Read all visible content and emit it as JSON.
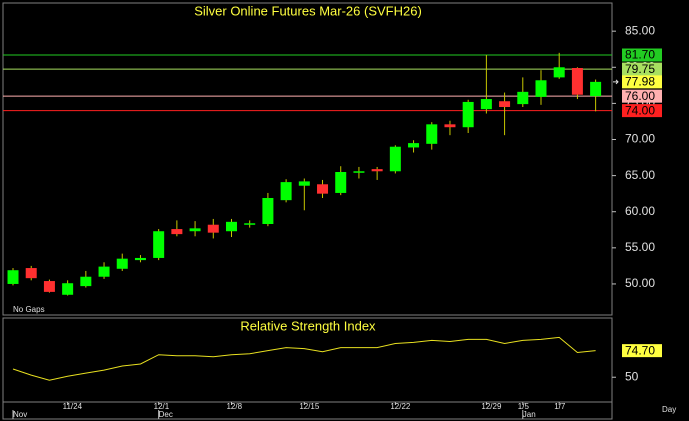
{
  "chart_data": [
    {
      "type": "candlestick",
      "title": "Silver Online Futures Mar-26 (SVFH26)",
      "annotation": "No Gaps",
      "up_color": "#00ff00",
      "down_color": "#ff3030",
      "wick_color": "#c8c800",
      "xlim": [
        -0.55,
        32.9
      ],
      "xticks": [
        {
          "value": 3,
          "label": "11/24"
        },
        {
          "value": 8,
          "label": "12/1"
        },
        {
          "value": 12,
          "label": "12/8"
        },
        {
          "value": 16,
          "label": "12/15"
        },
        {
          "value": 21,
          "label": "12/22"
        },
        {
          "value": 26,
          "label": "12/29"
        },
        {
          "value": 28,
          "label": "1/5"
        },
        {
          "value": 30,
          "label": "1/7"
        }
      ],
      "month_ticks": [
        {
          "value": 0,
          "label": "Nov"
        },
        {
          "value": 8,
          "label": "Dec"
        },
        {
          "value": 28,
          "label": "Jan"
        }
      ],
      "period_label": "Day",
      "ylim": [
        45.7,
        88.9
      ],
      "yticks": [
        {
          "value": 50,
          "label": "50.00"
        },
        {
          "value": 55,
          "label": "55.00"
        },
        {
          "value": 60,
          "label": "60.00"
        },
        {
          "value": 65,
          "label": "65.00"
        },
        {
          "value": 70,
          "label": "70.00"
        },
        {
          "value": 75,
          "label": "75.00"
        },
        {
          "value": 80,
          "label": "80.00"
        },
        {
          "value": 85,
          "label": "85.00"
        }
      ],
      "grid": false,
      "series": [
        {
          "open": [
            50.0,
            52.2,
            50.4,
            48.5,
            49.7,
            51.0,
            52.1,
            53.3,
            53.6,
            57.6,
            57.3,
            58.2,
            57.3,
            58.2,
            58.3,
            61.6,
            63.6,
            63.8,
            62.6,
            65.4,
            65.9,
            65.6,
            68.9,
            69.4,
            72.1,
            71.7,
            74.2,
            75.3,
            74.9,
            75.9,
            78.6,
            79.9,
            76.0
          ],
          "high": [
            52.2,
            52.5,
            50.6,
            50.5,
            51.8,
            53.0,
            54.2,
            54.0,
            57.6,
            58.8,
            58.7,
            59.0,
            59.0,
            58.8,
            62.6,
            64.5,
            64.6,
            64.4,
            66.3,
            66.2,
            66.2,
            69.2,
            69.9,
            72.4,
            72.6,
            75.5,
            81.7,
            76.5,
            78.6,
            79.6,
            82.0,
            80.0,
            78.3
          ],
          "low": [
            49.8,
            50.5,
            48.8,
            48.4,
            49.5,
            50.7,
            51.8,
            53.0,
            53.3,
            56.6,
            56.6,
            56.3,
            56.5,
            57.8,
            58.0,
            61.3,
            60.2,
            61.9,
            62.3,
            64.6,
            64.4,
            65.3,
            68.2,
            68.6,
            70.6,
            70.9,
            73.6,
            70.6,
            74.5,
            74.8,
            78.4,
            75.6,
            73.9
          ],
          "close": [
            51.9,
            50.8,
            48.9,
            50.1,
            51.0,
            52.4,
            53.5,
            53.6,
            57.3,
            56.9,
            57.7,
            57.1,
            58.6,
            58.4,
            61.9,
            64.1,
            64.2,
            62.5,
            65.5,
            65.6,
            65.6,
            69.0,
            69.5,
            72.1,
            71.7,
            75.2,
            75.6,
            74.5,
            76.6,
            78.2,
            80.0,
            76.2,
            77.98
          ]
        }
      ],
      "levels": [
        {
          "value": 81.7,
          "label": "81.70",
          "color": "#22cc22"
        },
        {
          "value": 79.75,
          "label": "79.75",
          "color": "#a8e060"
        },
        {
          "value": 76.0,
          "label": "76.00",
          "color": "#ffb0b0"
        },
        {
          "value": 74.0,
          "label": "74.00",
          "color": "#ff2020"
        }
      ],
      "last": {
        "value": 77.98,
        "label": "77.98",
        "color": "#ffff40"
      }
    },
    {
      "type": "line",
      "title": "Relative Strength Index",
      "color": "#e8e020",
      "xlim": [
        -0.55,
        32.9
      ],
      "ylim": [
        27,
        105
      ],
      "yticks": [
        50
      ],
      "values": [
        57.6,
        52.0,
        47.2,
        51.0,
        53.8,
        56.6,
        60.4,
        62.3,
        70.9,
        70.0,
        70.0,
        69.0,
        70.9,
        71.8,
        74.7,
        77.5,
        76.6,
        73.7,
        77.5,
        77.5,
        77.5,
        81.3,
        82.3,
        84.2,
        83.2,
        85.1,
        85.1,
        81.3,
        84.2,
        85.1,
        87.0,
        73.0,
        74.7
      ],
      "last": {
        "value": 74.7,
        "label": "74.70",
        "color": "#ffff40"
      }
    }
  ]
}
